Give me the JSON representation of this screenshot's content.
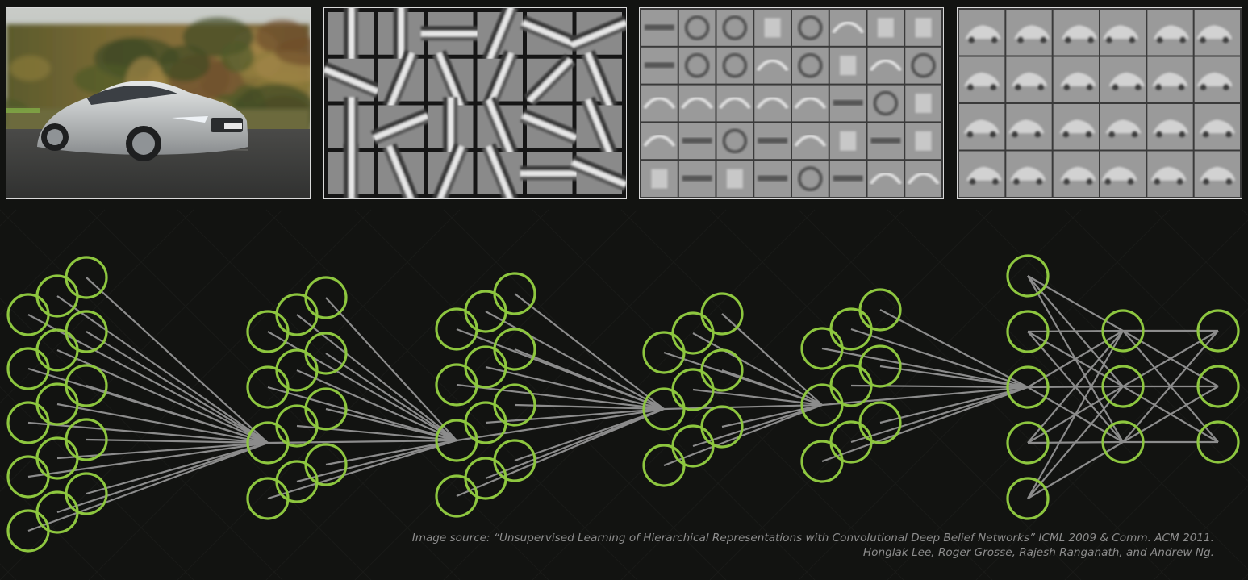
{
  "colors": {
    "background": "#121311",
    "neuron_outline": "#8dc63f",
    "connection": "#9a9a9a",
    "panel_border": "#2a2a2a",
    "caption_text": "#8c8c8c"
  },
  "panels": [
    {
      "name": "input-car-photo",
      "content": "photo of silver car on road"
    },
    {
      "name": "layer1-edge-filters",
      "content": "oriented edge filters",
      "grid_cols": 6,
      "grid_rows": 4
    },
    {
      "name": "layer2-part-filters",
      "content": "object part filters",
      "grid_cols": 8,
      "grid_rows": 5
    },
    {
      "name": "layer3-car-filters",
      "content": "whole car filters",
      "grid_cols": 6,
      "grid_rows": 4
    }
  ],
  "network": {
    "groups": [
      {
        "name": "input-layer",
        "columns": 3,
        "rows": [
          5,
          5,
          5
        ]
      },
      {
        "name": "conv-layer-1",
        "columns": 3,
        "rows": [
          4,
          4,
          4
        ]
      },
      {
        "name": "conv-layer-2",
        "columns": 3,
        "rows": [
          4,
          4,
          4
        ]
      },
      {
        "name": "conv-layer-3",
        "columns": 3,
        "rows": [
          3,
          3,
          3
        ]
      },
      {
        "name": "conv-layer-4",
        "columns": 3,
        "rows": [
          3,
          3,
          3
        ]
      },
      {
        "name": "dense-layer-1",
        "columns": 1,
        "rows": [
          5
        ]
      },
      {
        "name": "dense-layer-2",
        "columns": 1,
        "rows": [
          3
        ]
      },
      {
        "name": "output-layer",
        "columns": 1,
        "rows": [
          3
        ]
      }
    ]
  },
  "caption": {
    "line1": "Image source: “Unsupervised Learning of Hierarchical Representations with Convolutional Deep Belief Networks” ICML 2009 & Comm. ACM 2011.",
    "line2": "Honglak Lee, Roger Grosse, Rajesh Ranganath, and Andrew Ng."
  }
}
